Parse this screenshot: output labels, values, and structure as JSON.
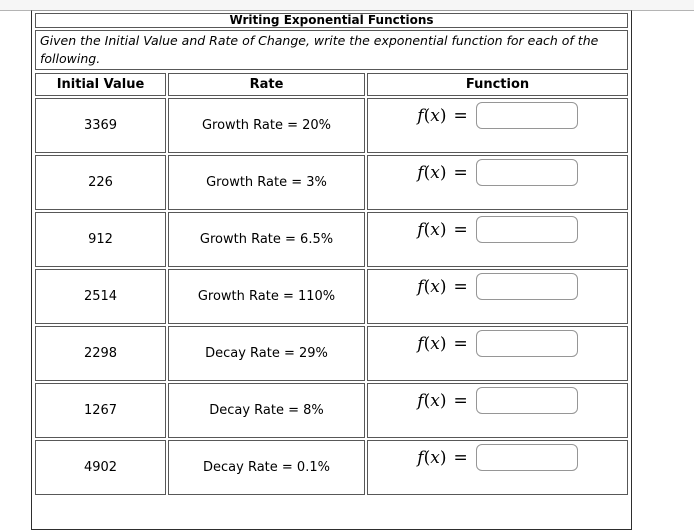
{
  "page": {
    "title": "Writing Exponential Functions",
    "instructions": "Given the Initial Value and Rate of Change, write the exponential function for each of the following."
  },
  "math_notation": {
    "f": "f",
    "open_paren": "(",
    "var": "x",
    "close_paren": ")",
    "equals": "="
  },
  "table": {
    "headers": [
      "Initial Value",
      "Rate",
      "Function"
    ],
    "rows": [
      {
        "initial_value": "3369",
        "rate": "Growth Rate = 20%",
        "function_value": ""
      },
      {
        "initial_value": "226",
        "rate": "Growth Rate = 3%",
        "function_value": ""
      },
      {
        "initial_value": "912",
        "rate": "Growth Rate = 6.5%",
        "function_value": ""
      },
      {
        "initial_value": "2514",
        "rate": "Growth Rate = 110%",
        "function_value": ""
      },
      {
        "initial_value": "2298",
        "rate": "Decay Rate = 29%",
        "function_value": ""
      },
      {
        "initial_value": "1267",
        "rate": "Decay Rate = 8%",
        "function_value": ""
      },
      {
        "initial_value": "4902",
        "rate": "Decay Rate = 0.1%",
        "function_value": ""
      }
    ]
  }
}
